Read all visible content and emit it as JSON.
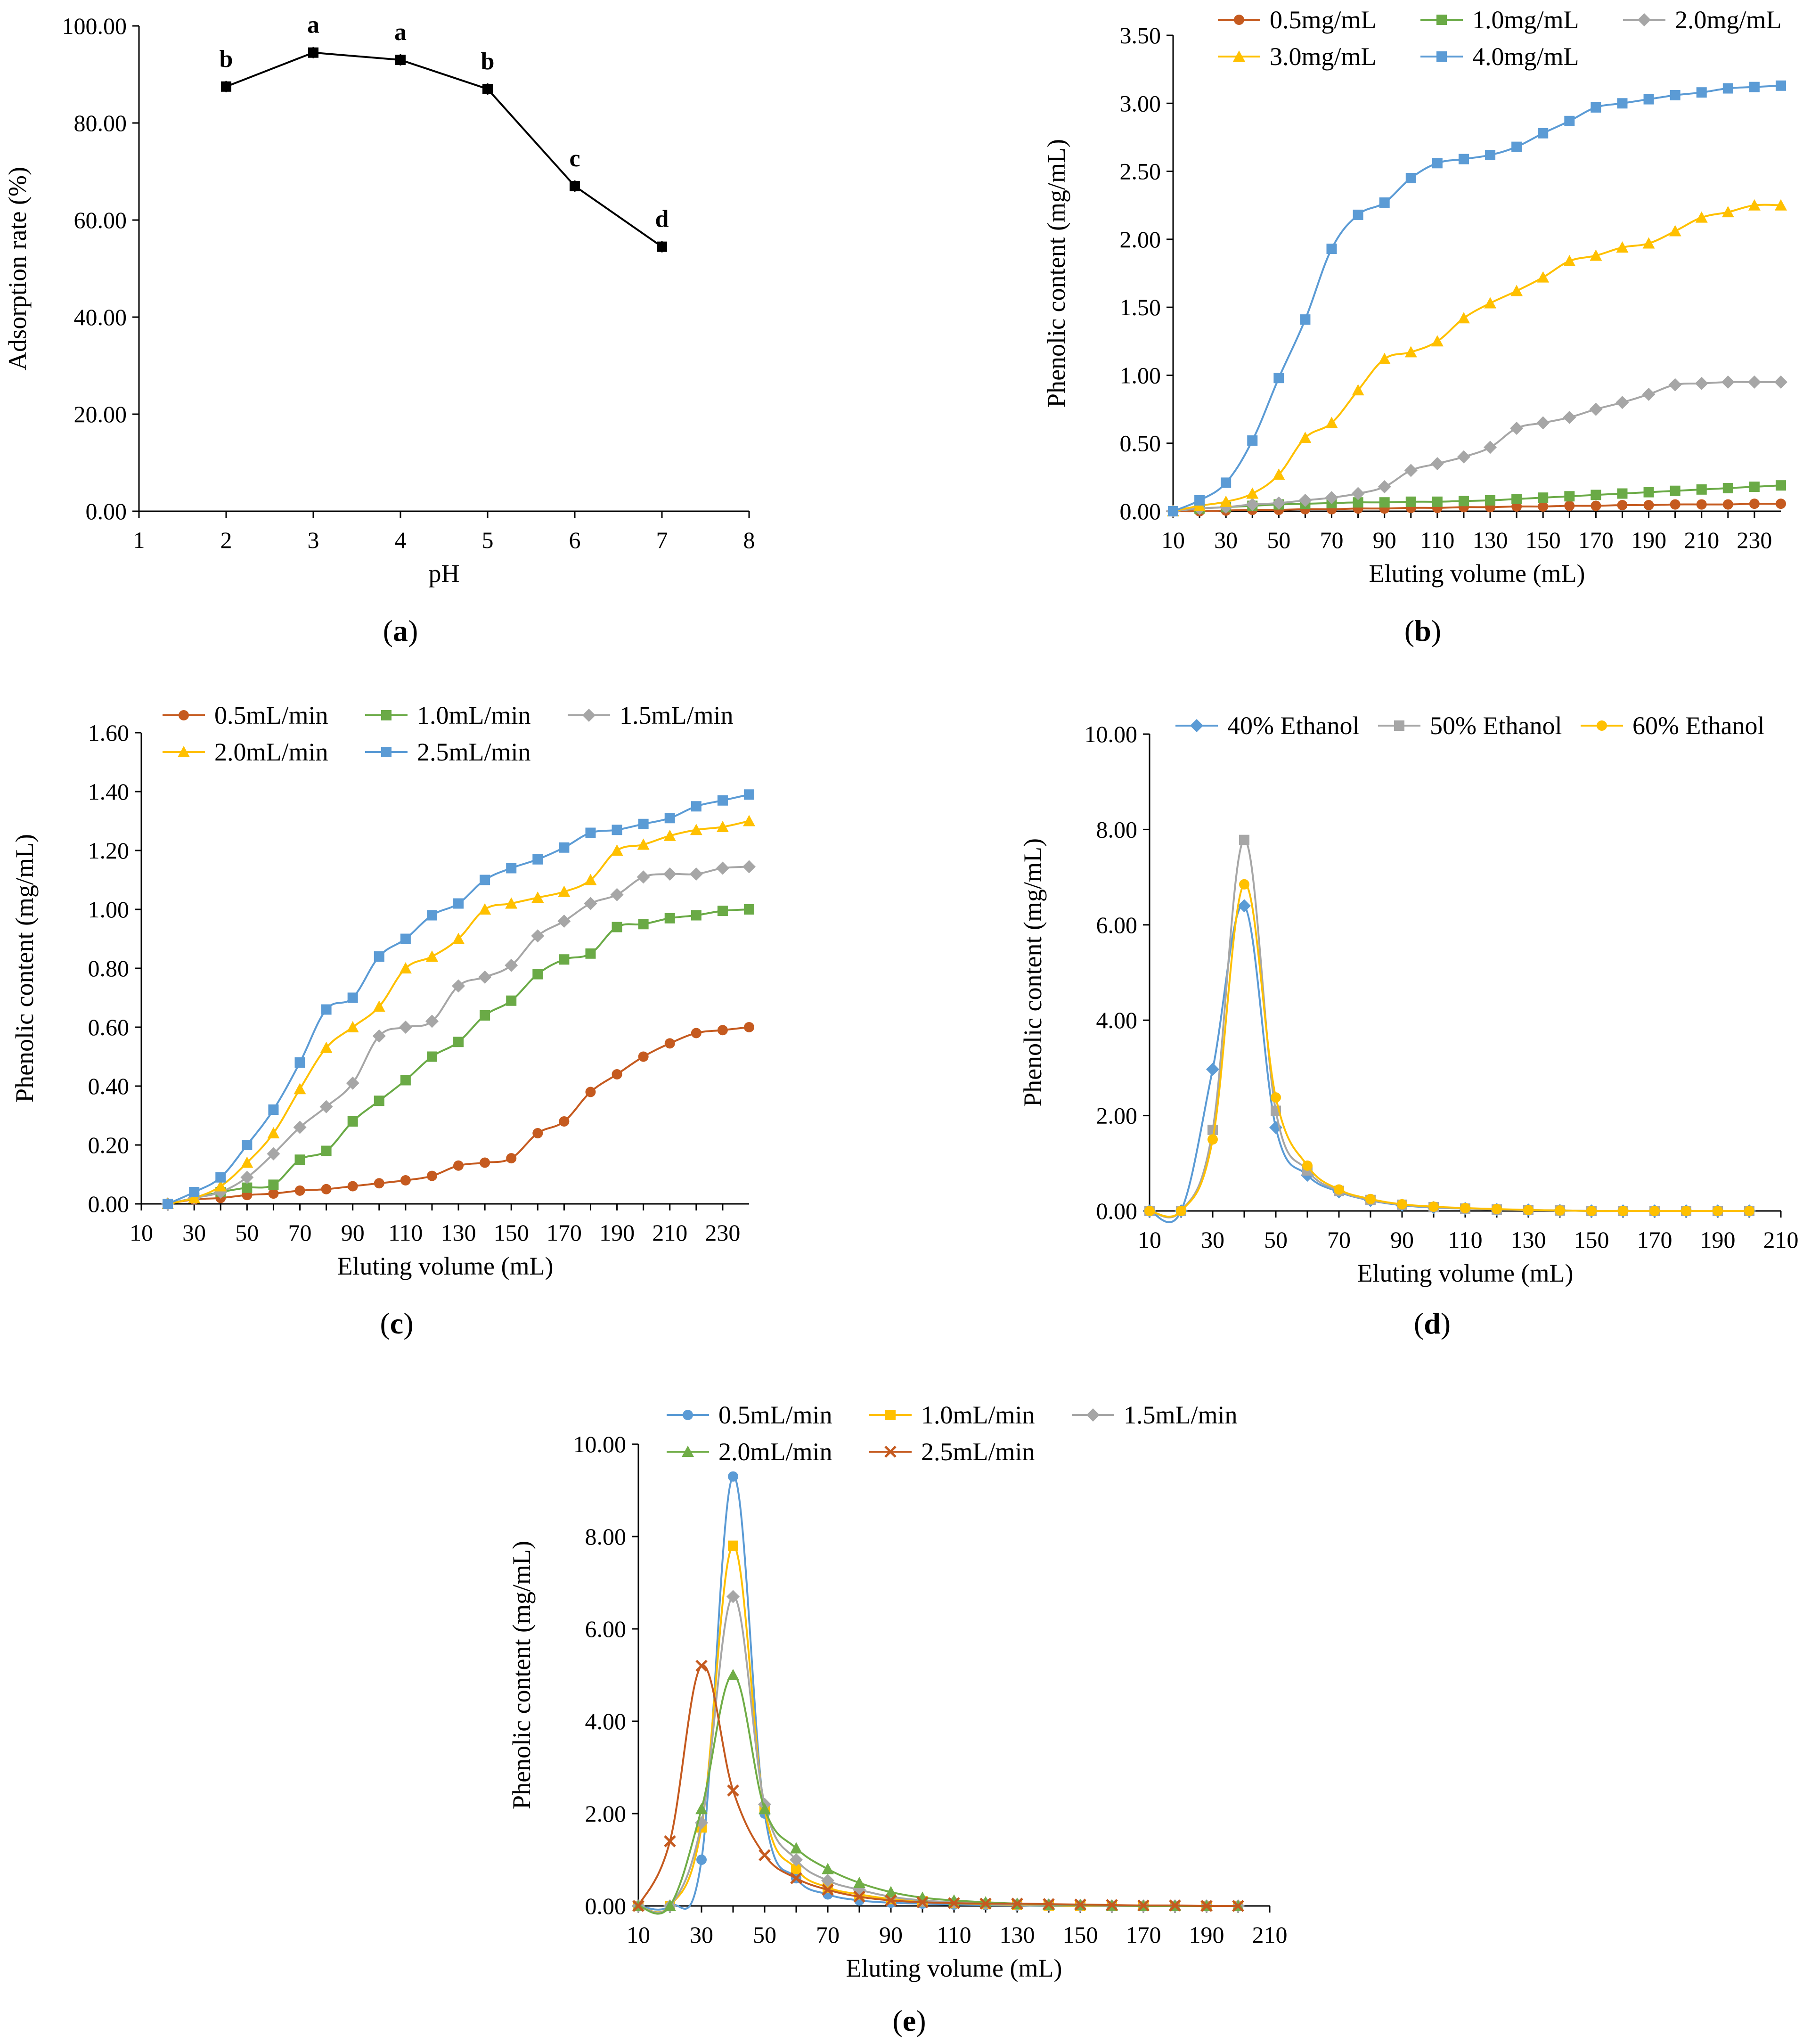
{
  "figure": {
    "panels": [
      "(a)",
      "(b)",
      "(c)",
      "(d)",
      "(e)"
    ]
  },
  "chart_data": [
    {
      "id": "a",
      "type": "line",
      "caption_letter": "a",
      "title": "",
      "xlabel": "pH",
      "ylabel": "Adsorption rate (%)",
      "xlim": [
        1,
        8
      ],
      "ylim": [
        0,
        100
      ],
      "xticks": [
        "1",
        "2",
        "3",
        "4",
        "5",
        "6",
        "7",
        "8"
      ],
      "yticks": [
        "0.00",
        "20.00",
        "40.00",
        "60.00",
        "80.00",
        "100.00"
      ],
      "grid": false,
      "series": [
        {
          "name": "Adsorption rate",
          "color": "#000000",
          "marker": "square",
          "x": [
            2,
            3,
            4,
            5,
            6,
            7
          ],
          "values": [
            87.5,
            94.5,
            93.0,
            87.0,
            67.0,
            54.5
          ],
          "labels": [
            "b",
            "a",
            "a",
            "b",
            "c",
            "d"
          ]
        }
      ]
    },
    {
      "id": "b",
      "type": "line",
      "caption_letter": "b",
      "title": "",
      "xlabel": "Eluting volume (mL)",
      "ylabel": "Phenolic content (mg/mL)",
      "xlim": [
        10,
        240
      ],
      "ylim": [
        0,
        3.5
      ],
      "xticks": [
        "10",
        "30",
        "50",
        "70",
        "90",
        "110",
        "130",
        "150",
        "170",
        "190",
        "210",
        "230"
      ],
      "yticks": [
        "0.00",
        "0.50",
        "1.00",
        "1.50",
        "2.00",
        "2.50",
        "3.00",
        "3.50"
      ],
      "legend_position": "top",
      "grid": false,
      "x": [
        10,
        20,
        30,
        40,
        50,
        60,
        70,
        80,
        90,
        100,
        110,
        120,
        130,
        140,
        150,
        160,
        170,
        180,
        190,
        200,
        210,
        220,
        230,
        240
      ],
      "series": [
        {
          "name": "0.5mg/mL",
          "color": "#c55a1f",
          "marker": "circle",
          "values": [
            0,
            0,
            0.005,
            0.01,
            0.01,
            0.015,
            0.015,
            0.02,
            0.02,
            0.025,
            0.025,
            0.03,
            0.03,
            0.035,
            0.035,
            0.04,
            0.04,
            0.045,
            0.045,
            0.05,
            0.05,
            0.05,
            0.055,
            0.055
          ]
        },
        {
          "name": "1.0mg/mL",
          "color": "#6aaa46",
          "marker": "square",
          "values": [
            0,
            0.02,
            0.03,
            0.04,
            0.05,
            0.055,
            0.06,
            0.065,
            0.065,
            0.07,
            0.07,
            0.075,
            0.08,
            0.09,
            0.1,
            0.11,
            0.12,
            0.13,
            0.14,
            0.15,
            0.16,
            0.17,
            0.18,
            0.19
          ]
        },
        {
          "name": "2.0mg/mL",
          "color": "#a6a6a6",
          "marker": "diamond",
          "values": [
            0,
            0.02,
            0.03,
            0.05,
            0.06,
            0.08,
            0.1,
            0.13,
            0.18,
            0.3,
            0.35,
            0.4,
            0.47,
            0.61,
            0.65,
            0.69,
            0.75,
            0.8,
            0.86,
            0.93,
            0.94,
            0.95,
            0.95,
            0.95
          ]
        },
        {
          "name": "3.0mg/mL",
          "color": "#ffc000",
          "marker": "triangle",
          "values": [
            0,
            0.04,
            0.07,
            0.13,
            0.27,
            0.54,
            0.65,
            0.89,
            1.12,
            1.17,
            1.25,
            1.42,
            1.53,
            1.62,
            1.72,
            1.84,
            1.88,
            1.94,
            1.97,
            2.06,
            2.16,
            2.2,
            2.25,
            2.25
          ]
        },
        {
          "name": "4.0mg/mL",
          "color": "#5b9bd5",
          "marker": "square",
          "values": [
            0,
            0.08,
            0.21,
            0.52,
            0.98,
            1.41,
            1.93,
            2.18,
            2.27,
            2.45,
            2.56,
            2.59,
            2.62,
            2.68,
            2.78,
            2.87,
            2.97,
            3.0,
            3.03,
            3.06,
            3.08,
            3.11,
            3.12,
            3.13
          ]
        }
      ]
    },
    {
      "id": "c",
      "type": "line",
      "caption_letter": "c",
      "title": "",
      "xlabel": "Eluting volume (mL)",
      "ylabel": "Phenolic content (mg/mL)",
      "xlim": [
        10,
        240
      ],
      "ylim": [
        0,
        1.6
      ],
      "xticks": [
        "10",
        "30",
        "50",
        "70",
        "90",
        "110",
        "130",
        "150",
        "170",
        "190",
        "210",
        "230"
      ],
      "yticks": [
        "0.00",
        "0.20",
        "0.40",
        "0.60",
        "0.80",
        "1.00",
        "1.20",
        "1.40",
        "1.60"
      ],
      "legend_position": "top",
      "grid": false,
      "x": [
        20,
        30,
        40,
        50,
        60,
        70,
        80,
        90,
        100,
        110,
        120,
        130,
        140,
        150,
        160,
        170,
        180,
        190,
        200,
        210,
        220,
        230,
        240
      ],
      "series": [
        {
          "name": "0.5mL/min",
          "color": "#c55a1f",
          "marker": "circle",
          "values": [
            0,
            0.015,
            0.02,
            0.03,
            0.035,
            0.045,
            0.05,
            0.06,
            0.07,
            0.08,
            0.095,
            0.13,
            0.14,
            0.155,
            0.24,
            0.28,
            0.38,
            0.44,
            0.5,
            0.545,
            0.58,
            0.59,
            0.6
          ]
        },
        {
          "name": "1.0mL/min",
          "color": "#6aaa46",
          "marker": "square",
          "values": [
            0,
            0.02,
            0.04,
            0.055,
            0.065,
            0.15,
            0.18,
            0.28,
            0.35,
            0.42,
            0.5,
            0.55,
            0.64,
            0.69,
            0.78,
            0.83,
            0.85,
            0.94,
            0.95,
            0.97,
            0.98,
            0.995,
            1.0
          ]
        },
        {
          "name": "1.5mL/min",
          "color": "#a6a6a6",
          "marker": "diamond",
          "values": [
            0,
            0.02,
            0.04,
            0.09,
            0.17,
            0.26,
            0.33,
            0.41,
            0.57,
            0.6,
            0.62,
            0.74,
            0.77,
            0.81,
            0.91,
            0.96,
            1.02,
            1.05,
            1.11,
            1.12,
            1.12,
            1.14,
            1.145
          ]
        },
        {
          "name": "2.0mL/min",
          "color": "#ffc000",
          "marker": "triangle",
          "values": [
            0,
            0.02,
            0.06,
            0.14,
            0.24,
            0.39,
            0.53,
            0.6,
            0.67,
            0.8,
            0.84,
            0.9,
            1.0,
            1.02,
            1.04,
            1.06,
            1.1,
            1.2,
            1.22,
            1.25,
            1.27,
            1.28,
            1.3
          ]
        },
        {
          "name": "2.5mL/min",
          "color": "#5b9bd5",
          "marker": "square",
          "values": [
            0,
            0.04,
            0.09,
            0.2,
            0.32,
            0.48,
            0.66,
            0.7,
            0.84,
            0.9,
            0.98,
            1.02,
            1.1,
            1.14,
            1.17,
            1.21,
            1.26,
            1.27,
            1.29,
            1.31,
            1.35,
            1.37,
            1.39
          ]
        }
      ]
    },
    {
      "id": "d",
      "type": "line",
      "caption_letter": "d",
      "title": "",
      "xlabel": "Eluting volume (mL)",
      "ylabel": "Phenolic content (mg/mL)",
      "xlim": [
        10,
        210
      ],
      "ylim": [
        0,
        10
      ],
      "xticks": [
        "10",
        "30",
        "50",
        "70",
        "90",
        "110",
        "130",
        "150",
        "170",
        "190",
        "210"
      ],
      "yticks": [
        "0.00",
        "2.00",
        "4.00",
        "6.00",
        "8.00",
        "10.00"
      ],
      "legend_position": "top",
      "grid": false,
      "x": [
        10,
        20,
        30,
        40,
        50,
        60,
        70,
        80,
        90,
        100,
        110,
        120,
        130,
        140,
        150,
        160,
        170,
        180,
        190,
        200
      ],
      "series": [
        {
          "name": "40% Ethanol",
          "color": "#5b9bd5",
          "marker": "diamond",
          "values": [
            0,
            0,
            2.97,
            6.4,
            1.75,
            0.75,
            0.4,
            0.22,
            0.12,
            0.07,
            0.05,
            0.03,
            0.02,
            0.01,
            0,
            0,
            0,
            0,
            0,
            0
          ]
        },
        {
          "name": "50% Ethanol",
          "color": "#a6a6a6",
          "marker": "square",
          "values": [
            0,
            0,
            1.7,
            7.78,
            2.1,
            0.85,
            0.42,
            0.23,
            0.13,
            0.08,
            0.05,
            0.03,
            0.02,
            0.01,
            0,
            0,
            0,
            0,
            0,
            0
          ]
        },
        {
          "name": "60% Ethanol",
          "color": "#ffc000",
          "marker": "circle",
          "values": [
            0,
            0,
            1.5,
            6.85,
            2.38,
            0.95,
            0.45,
            0.25,
            0.14,
            0.09,
            0.06,
            0.04,
            0.02,
            0.01,
            0,
            0,
            0,
            0,
            0,
            0
          ]
        }
      ]
    },
    {
      "id": "e",
      "type": "line",
      "caption_letter": "e",
      "title": "",
      "xlabel": "Eluting volume (mL)",
      "ylabel": "Phenolic content (mg/mL)",
      "xlim": [
        10,
        210
      ],
      "ylim": [
        0,
        10
      ],
      "xticks": [
        "10",
        "30",
        "50",
        "70",
        "90",
        "110",
        "130",
        "150",
        "170",
        "190",
        "210"
      ],
      "yticks": [
        "0.00",
        "2.00",
        "4.00",
        "6.00",
        "8.00",
        "10.00"
      ],
      "legend_position": "top",
      "grid": false,
      "x": [
        10,
        20,
        30,
        40,
        50,
        60,
        70,
        80,
        90,
        100,
        110,
        120,
        130,
        140,
        150,
        160,
        170,
        180,
        190,
        200
      ],
      "series": [
        {
          "name": "0.5mL/min",
          "color": "#5b9bd5",
          "marker": "circle",
          "values": [
            0,
            0,
            1.0,
            9.3,
            2.0,
            0.6,
            0.25,
            0.12,
            0.07,
            0.05,
            0.03,
            0.02,
            0.01,
            0,
            0,
            0,
            0,
            0,
            0,
            0
          ]
        },
        {
          "name": "1.0mL/min",
          "color": "#ffc000",
          "marker": "square",
          "values": [
            0,
            0,
            1.7,
            7.8,
            2.1,
            0.8,
            0.4,
            0.25,
            0.15,
            0.1,
            0.06,
            0.04,
            0.02,
            0.01,
            0,
            0,
            0,
            0,
            0,
            0
          ]
        },
        {
          "name": "1.5mL/min",
          "color": "#a6a6a6",
          "marker": "diamond",
          "values": [
            0,
            0,
            1.8,
            6.7,
            2.2,
            1.0,
            0.55,
            0.35,
            0.2,
            0.12,
            0.08,
            0.05,
            0.03,
            0.02,
            0.01,
            0,
            0,
            0,
            0,
            0
          ]
        },
        {
          "name": "2.0mL/min",
          "color": "#70ad47",
          "marker": "triangle",
          "values": [
            0,
            0,
            2.1,
            5.0,
            2.1,
            1.25,
            0.8,
            0.5,
            0.3,
            0.18,
            0.12,
            0.08,
            0.05,
            0.03,
            0.02,
            0.01,
            0,
            0,
            0,
            0
          ]
        },
        {
          "name": "2.5mL/min",
          "color": "#c55a1f",
          "marker": "x",
          "values": [
            0,
            1.4,
            5.2,
            2.5,
            1.1,
            0.6,
            0.35,
            0.2,
            0.12,
            0.08,
            0.06,
            0.05,
            0.05,
            0.04,
            0.03,
            0.02,
            0.01,
            0.01,
            0,
            0
          ]
        }
      ]
    }
  ]
}
